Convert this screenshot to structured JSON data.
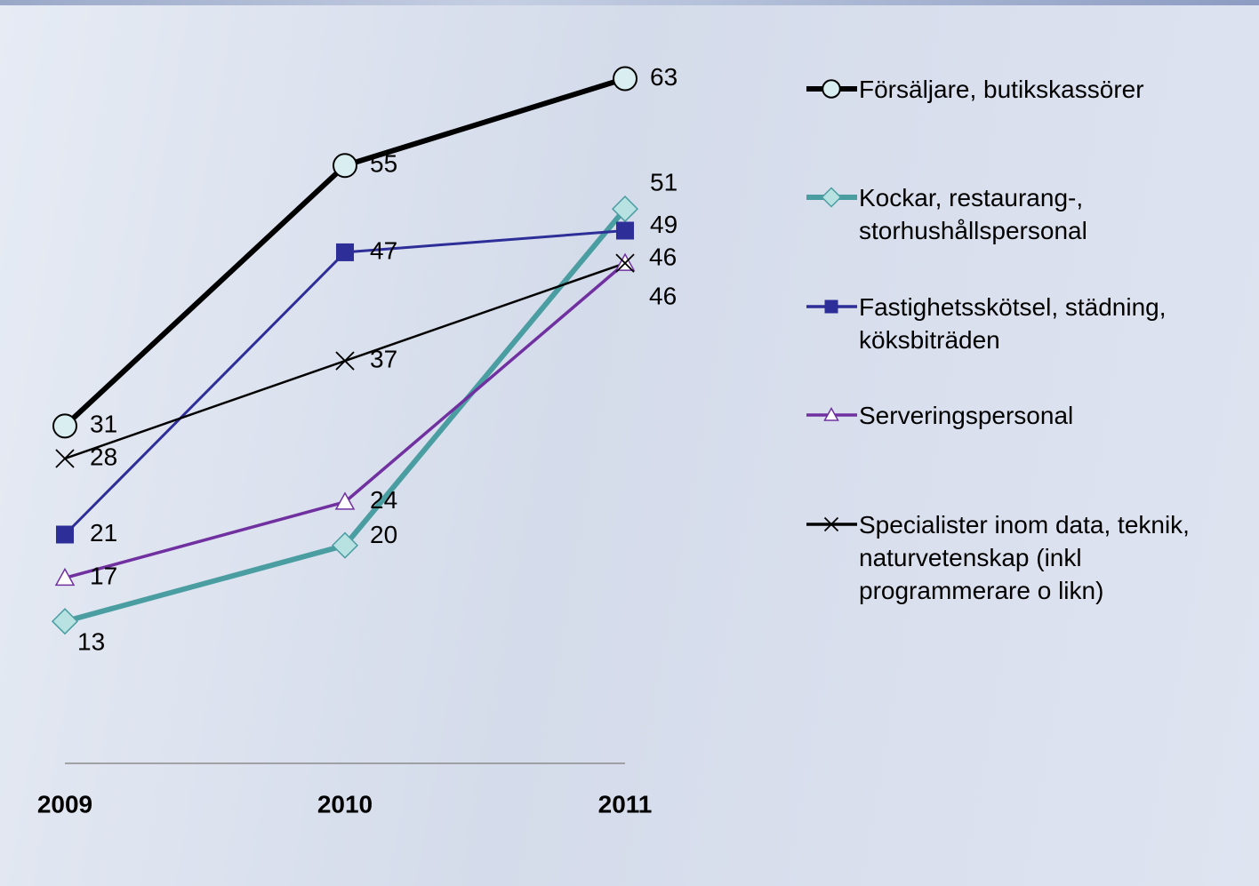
{
  "chart_data": {
    "type": "line",
    "categories": [
      "2009",
      "2010",
      "2011"
    ],
    "ylim": [
      0,
      70
    ],
    "series": [
      {
        "name": "Försäljare, butikskassörer",
        "color": "#000000",
        "marker": "circle",
        "values": [
          31,
          55,
          63
        ]
      },
      {
        "name": "Kockar, restaurang-, storhushållspersonal",
        "color": "#4a9ea2",
        "marker": "diamond",
        "values": [
          13,
          20,
          51
        ]
      },
      {
        "name": "Fastighetsskötsel, städning, köksbiträden",
        "color": "#2e2e99",
        "marker": "square",
        "values": [
          21,
          47,
          49
        ]
      },
      {
        "name": "Serveringspersonal",
        "color": "#7030a0",
        "marker": "triangle",
        "values": [
          17,
          24,
          46
        ]
      },
      {
        "name": "Specialister inom data, teknik, naturvetenskap (inkl programmerare o likn)",
        "color": "#000000",
        "marker": "x",
        "values": [
          28,
          37,
          46
        ]
      }
    ]
  }
}
